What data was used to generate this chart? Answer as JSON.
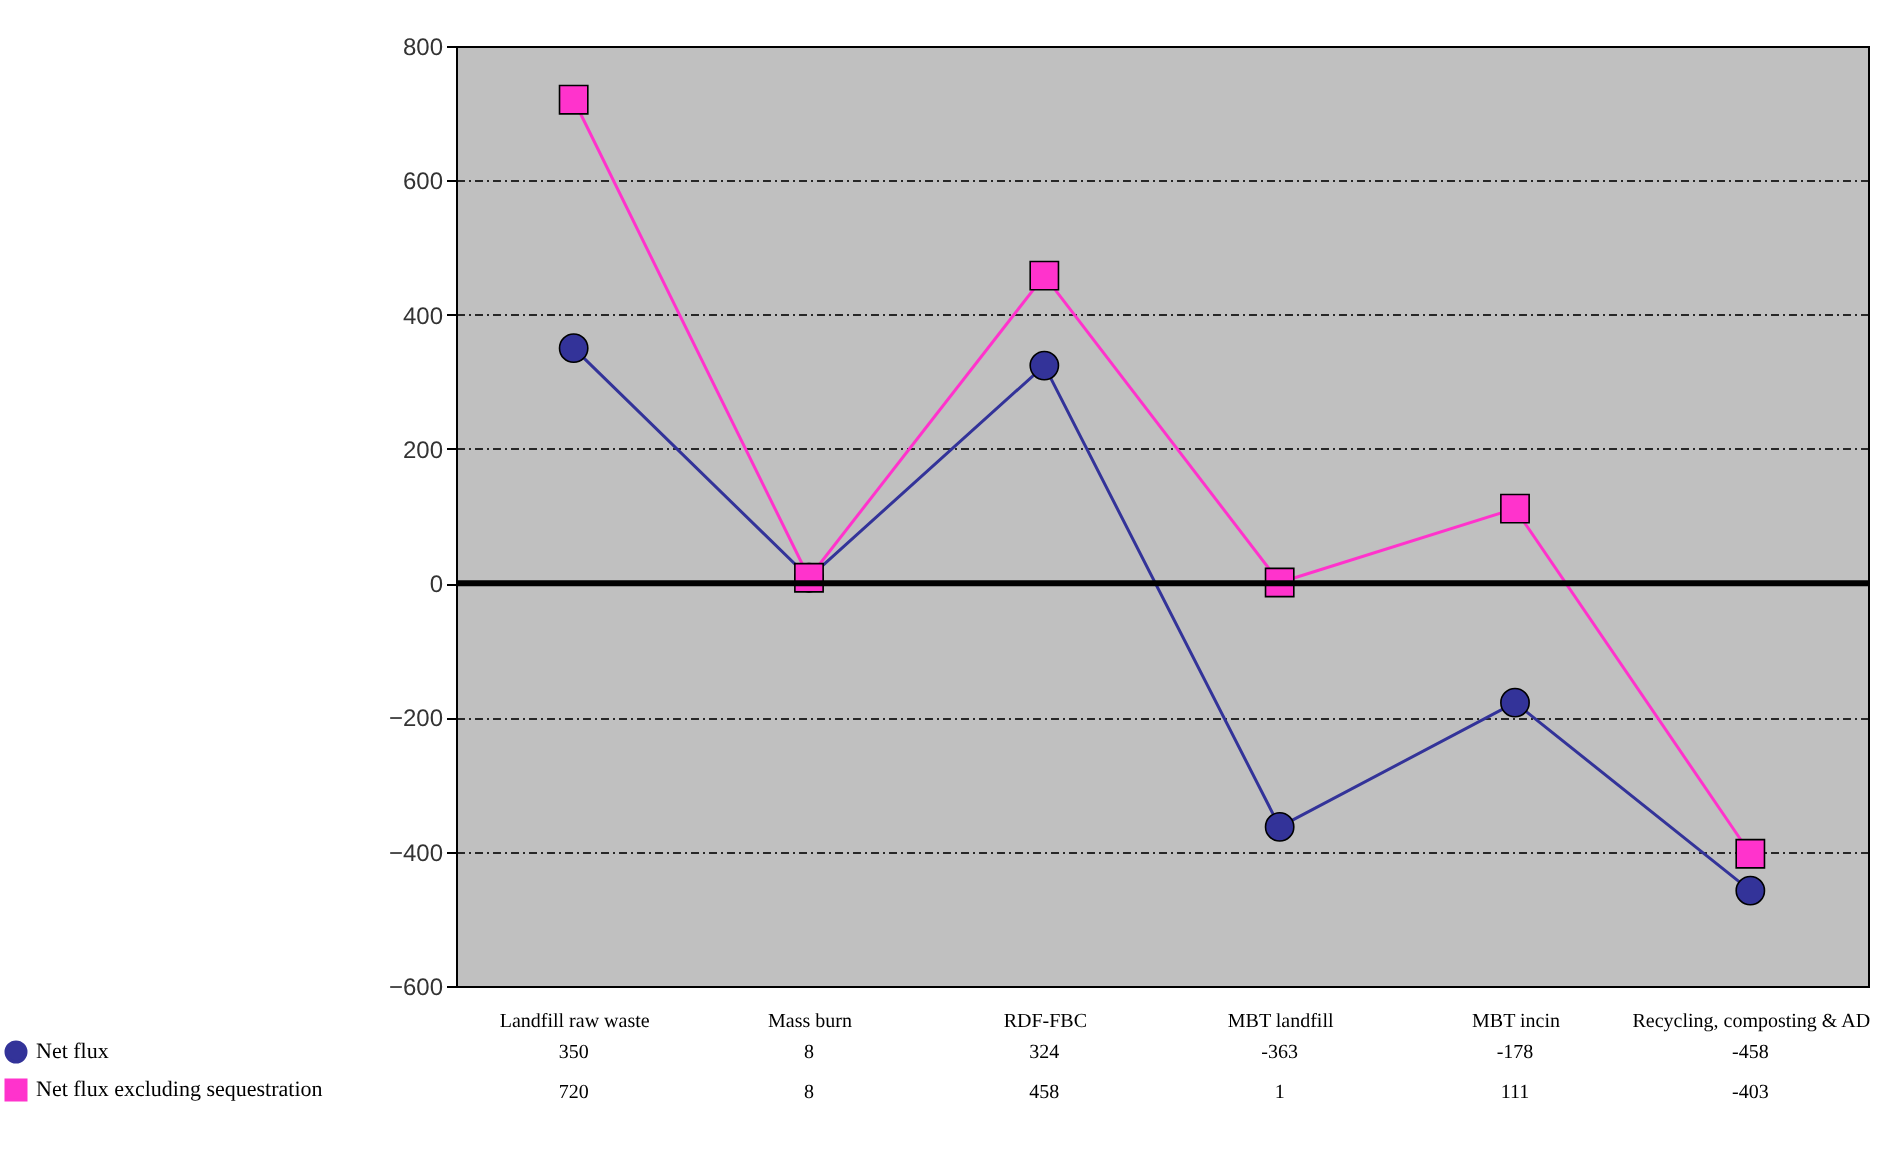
{
  "chart_data": {
    "type": "line",
    "categories": [
      "Landfill raw waste",
      "Mass burn",
      "RDF-FBC",
      "MBT landfill",
      "MBT incin",
      "Recycling, composting & AD"
    ],
    "series": [
      {
        "name": "Net flux",
        "color": "#333399",
        "marker": "circle",
        "values": [
          350,
          8,
          324,
          -363,
          -178,
          -458
        ]
      },
      {
        "name": "Net flux excluding sequestration",
        "color": "#ff33cc",
        "marker": "square",
        "values": [
          720,
          8,
          458,
          1,
          111,
          -403
        ]
      }
    ],
    "ylim": [
      -600,
      800
    ],
    "yticks": [
      -600,
      -400,
      -200,
      0,
      200,
      400,
      600,
      800
    ],
    "grid": "y",
    "legend": "bottom left",
    "data_labels": true,
    "ref_lines": [
      {
        "axis": "y",
        "value": 0
      }
    ]
  }
}
